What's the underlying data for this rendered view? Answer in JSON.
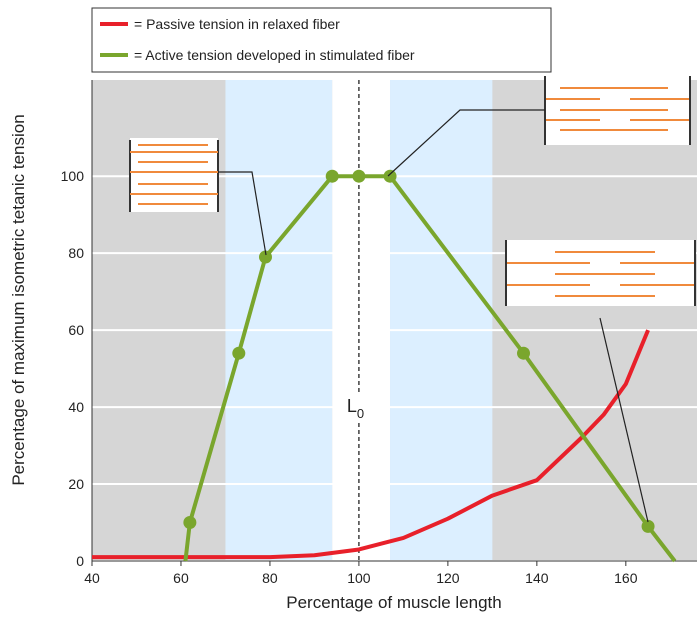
{
  "chart_data": {
    "type": "line",
    "x_label": "Percentage of muscle length",
    "y_label": "Percentage of maximum isometric tetanic tension",
    "xlim": [
      40,
      176
    ],
    "ylim": [
      0,
      125
    ],
    "xticks": [
      40,
      60,
      80,
      100,
      120,
      140,
      160
    ],
    "yticks": [
      0,
      20,
      40,
      60,
      80,
      100
    ],
    "grid": true,
    "plot_background": "#d6d6d6",
    "shaded_regions": [
      {
        "x": [
          70,
          94
        ],
        "color": "#dcefff"
      },
      {
        "x": [
          94,
          107
        ],
        "color": "#ffffff"
      },
      {
        "x": [
          107,
          130
        ],
        "color": "#dcefff"
      }
    ],
    "reference_line": {
      "x": 100,
      "text": "L",
      "subscript": "0"
    },
    "series": [
      {
        "name": "= Passive tension in relaxed fiber",
        "color": "#e8202a",
        "x": [
          40,
          60,
          80,
          90,
          100,
          110,
          120,
          130,
          140,
          150,
          155,
          160,
          165
        ],
        "values": [
          1,
          1,
          1,
          1.5,
          3,
          6,
          11,
          17,
          21,
          32,
          38,
          46,
          60
        ]
      },
      {
        "name": "= Active tension developed in stimulated fiber",
        "color": "#7aa62d",
        "x": [
          61,
          62,
          73,
          79,
          94,
          100,
          107,
          137,
          165,
          171
        ],
        "values": [
          0,
          10,
          54,
          79,
          100,
          100,
          100,
          54,
          9,
          0
        ]
      }
    ]
  }
}
